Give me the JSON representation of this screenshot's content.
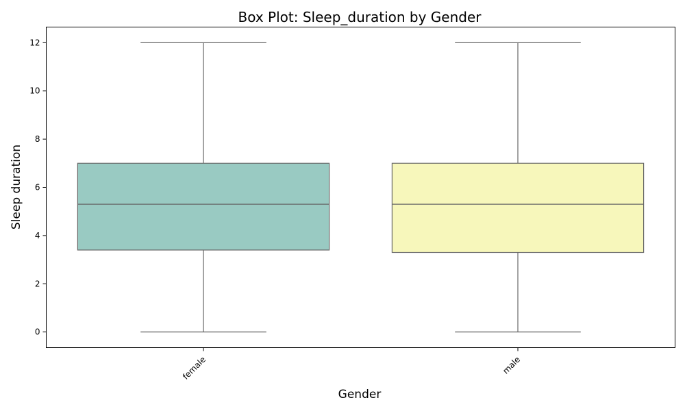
{
  "chart_data": {
    "type": "box",
    "title": "Box Plot: Sleep_duration by Gender",
    "xlabel": "Gender",
    "ylabel": "Sleep duration",
    "ylim": [
      -0.65,
      12.65
    ],
    "yticks": [
      0,
      2,
      4,
      6,
      8,
      10,
      12
    ],
    "grid": false,
    "legend": "none",
    "edge_color": "#666666",
    "categories": [
      "female",
      "male"
    ],
    "boxes": [
      {
        "category": "female",
        "whisker_low": 0,
        "q1": 3.4,
        "median": 5.3,
        "q3": 7.0,
        "whisker_high": 12,
        "color": "#99cac2"
      },
      {
        "category": "male",
        "whisker_low": 0,
        "q1": 3.3,
        "median": 5.3,
        "q3": 7.0,
        "whisker_high": 12,
        "color": "#f7f7bb"
      }
    ]
  }
}
